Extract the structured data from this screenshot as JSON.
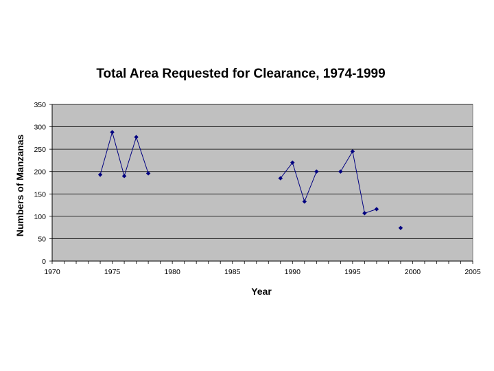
{
  "chart_data": {
    "type": "line",
    "title": "Total Area Requested for Clearance, 1974-1999",
    "xlabel": "Year",
    "ylabel": "Numbers of Manzanas",
    "xlim": [
      1970,
      2005
    ],
    "ylim": [
      0,
      350
    ],
    "xticks": [
      "1970",
      "1975",
      "1980",
      "1985",
      "1990",
      "1995",
      "2000",
      "2005"
    ],
    "yticks": [
      "0",
      "50",
      "100",
      "150",
      "200",
      "250",
      "300",
      "350"
    ],
    "grid": "horizontal",
    "legend": "none",
    "colors": {
      "plot_bg": "#c0c0c0",
      "line": "#000080",
      "marker": "#000080",
      "grid": "#000000"
    },
    "series": [
      {
        "segments": [
          [
            [
              1974,
              193
            ],
            [
              1975,
              288
            ],
            [
              1976,
              190
            ],
            [
              1977,
              277
            ],
            [
              1978,
              196
            ]
          ],
          [
            [
              1989,
              185
            ],
            [
              1990,
              220
            ],
            [
              1991,
              133
            ],
            [
              1992,
              200
            ]
          ],
          [
            [
              1994,
              200
            ],
            [
              1995,
              245
            ],
            [
              1996,
              107
            ],
            [
              1997,
              116
            ]
          ],
          [
            [
              1999,
              74
            ]
          ]
        ]
      }
    ]
  }
}
